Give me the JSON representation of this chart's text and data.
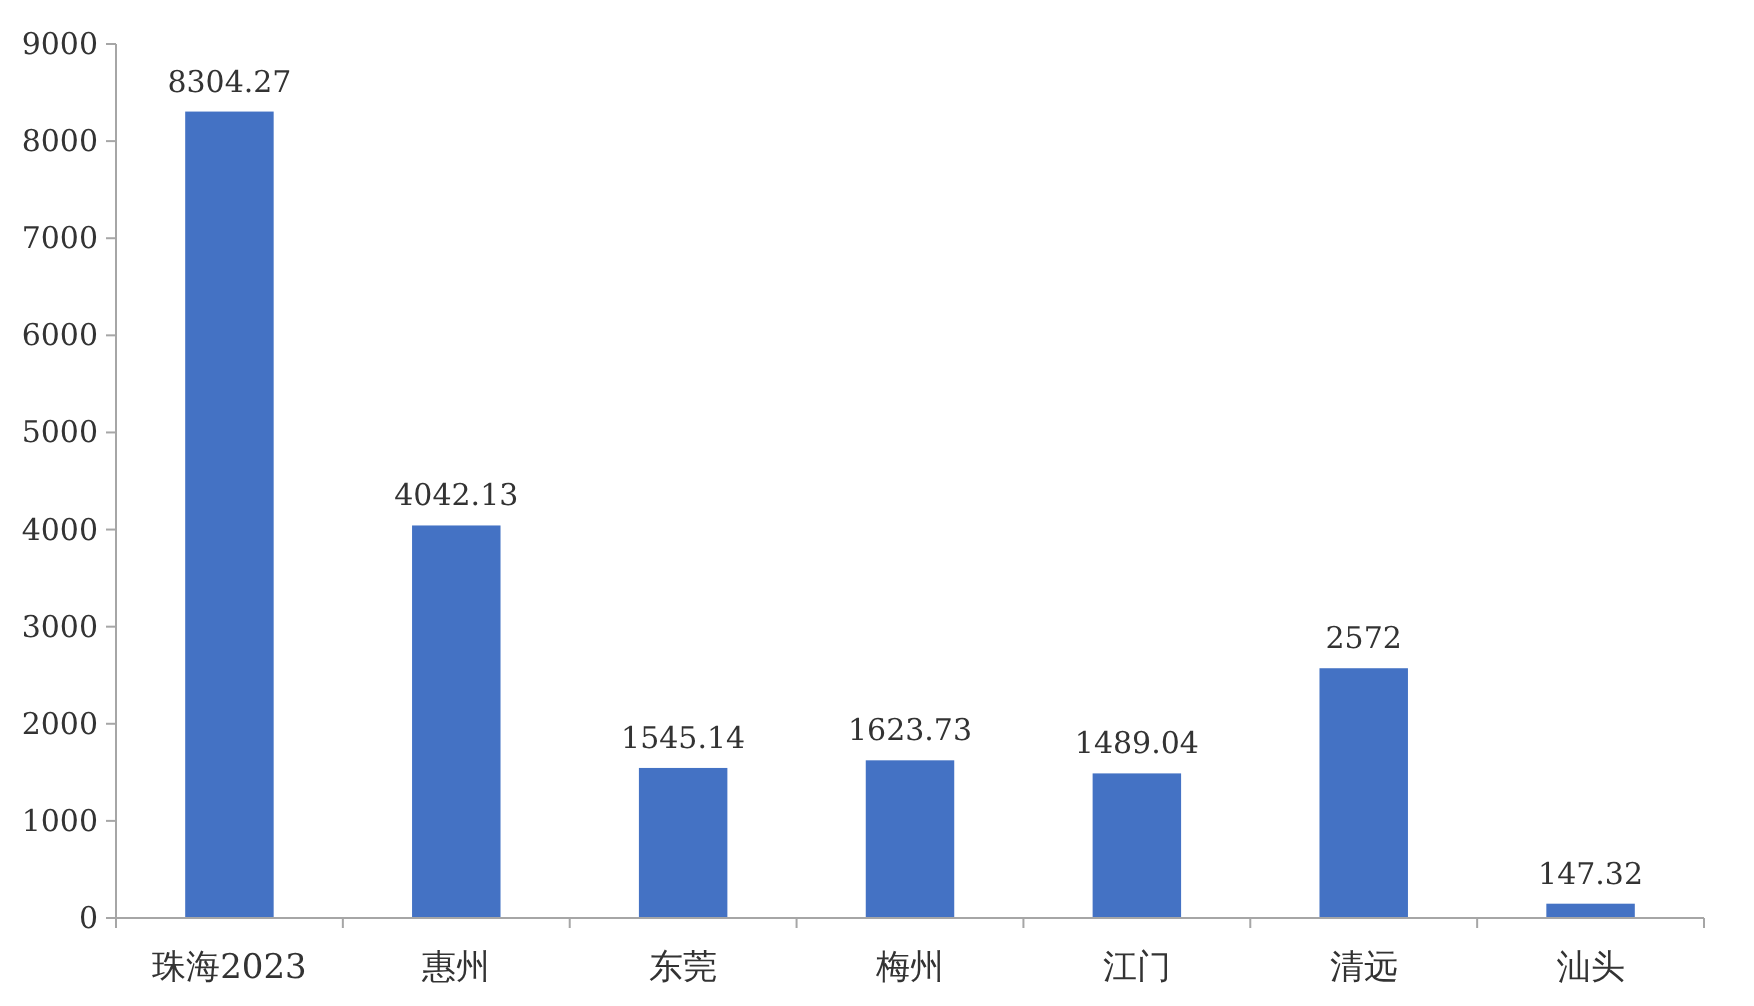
{
  "chart_data": {
    "type": "bar",
    "categories": [
      "珠海2023",
      "惠州",
      "东莞",
      "梅州",
      "江门",
      "清远",
      "汕头"
    ],
    "values": [
      8304.27,
      4042.13,
      1545.14,
      1623.73,
      1489.04,
      2572,
      147.32
    ],
    "color": "#4472c4",
    "ylim": [
      0,
      9000
    ],
    "yticks": [
      0,
      1000,
      2000,
      3000,
      4000,
      5000,
      6000,
      7000,
      8000,
      9000
    ],
    "data_labels": true
  }
}
